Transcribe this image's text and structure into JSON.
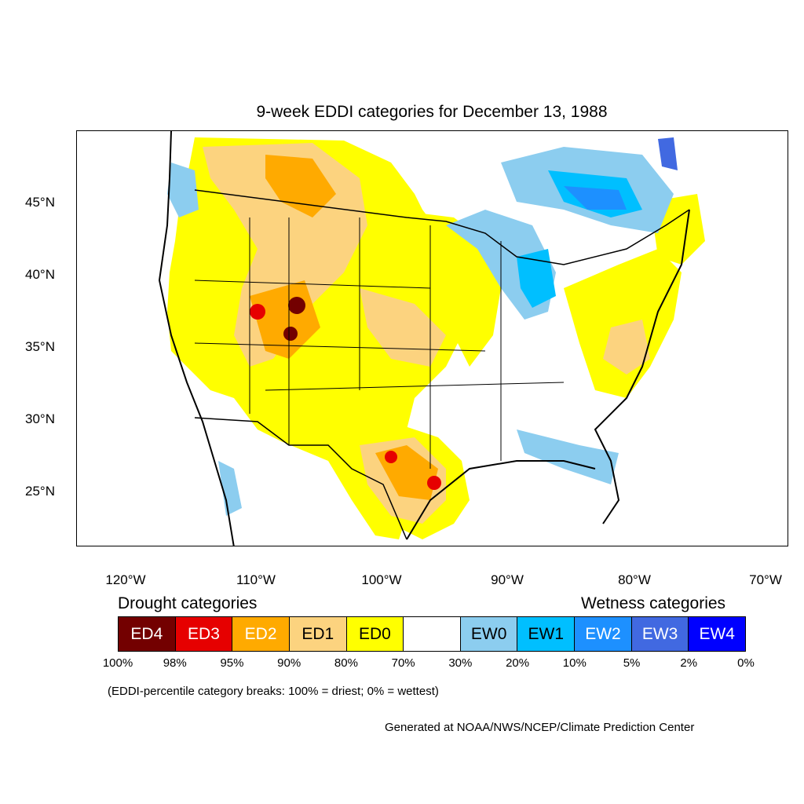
{
  "title": "9-week EDDI categories for December 13, 1988",
  "map": {
    "lat_labels": [
      "45°N",
      "40°N",
      "35°N",
      "30°N",
      "25°N"
    ],
    "lon_labels": [
      "120°W",
      "110°W",
      "100°W",
      "90°W",
      "80°W",
      "70°W"
    ],
    "region": "United States"
  },
  "legend": {
    "drought_heading": "Drought categories",
    "wetness_heading": "Wetness categories",
    "categories": [
      {
        "label": "ED4",
        "color": "#730000",
        "text_color": "#ffffff"
      },
      {
        "label": "ED3",
        "color": "#e60000",
        "text_color": "#ffffff"
      },
      {
        "label": "ED2",
        "color": "#ffaa00",
        "text_color": "#ffffff"
      },
      {
        "label": "ED1",
        "color": "#fcd37f",
        "text_color": "#000000"
      },
      {
        "label": "ED0",
        "color": "#ffff00",
        "text_color": "#000000"
      },
      {
        "label": "",
        "color": "#ffffff",
        "text_color": "#000000"
      },
      {
        "label": "EW0",
        "color": "#8ccdef",
        "text_color": "#000000"
      },
      {
        "label": "EW1",
        "color": "#00bfff",
        "text_color": "#000000"
      },
      {
        "label": "EW2",
        "color": "#1d90ff",
        "text_color": "#ffffff"
      },
      {
        "label": "EW3",
        "color": "#4169e1",
        "text_color": "#ffffff"
      },
      {
        "label": "EW4",
        "color": "#0000ff",
        "text_color": "#ffffff"
      }
    ],
    "breaks": [
      "100%",
      "98%",
      "95%",
      "90%",
      "80%",
      "70%",
      "30%",
      "20%",
      "10%",
      "5%",
      "2%",
      "0%"
    ]
  },
  "note": "(EDDI-percentile category breaks: 100% = driest; 0% = wettest)",
  "credit": "Generated at NOAA/NWS/NCEP/Climate Prediction Center"
}
